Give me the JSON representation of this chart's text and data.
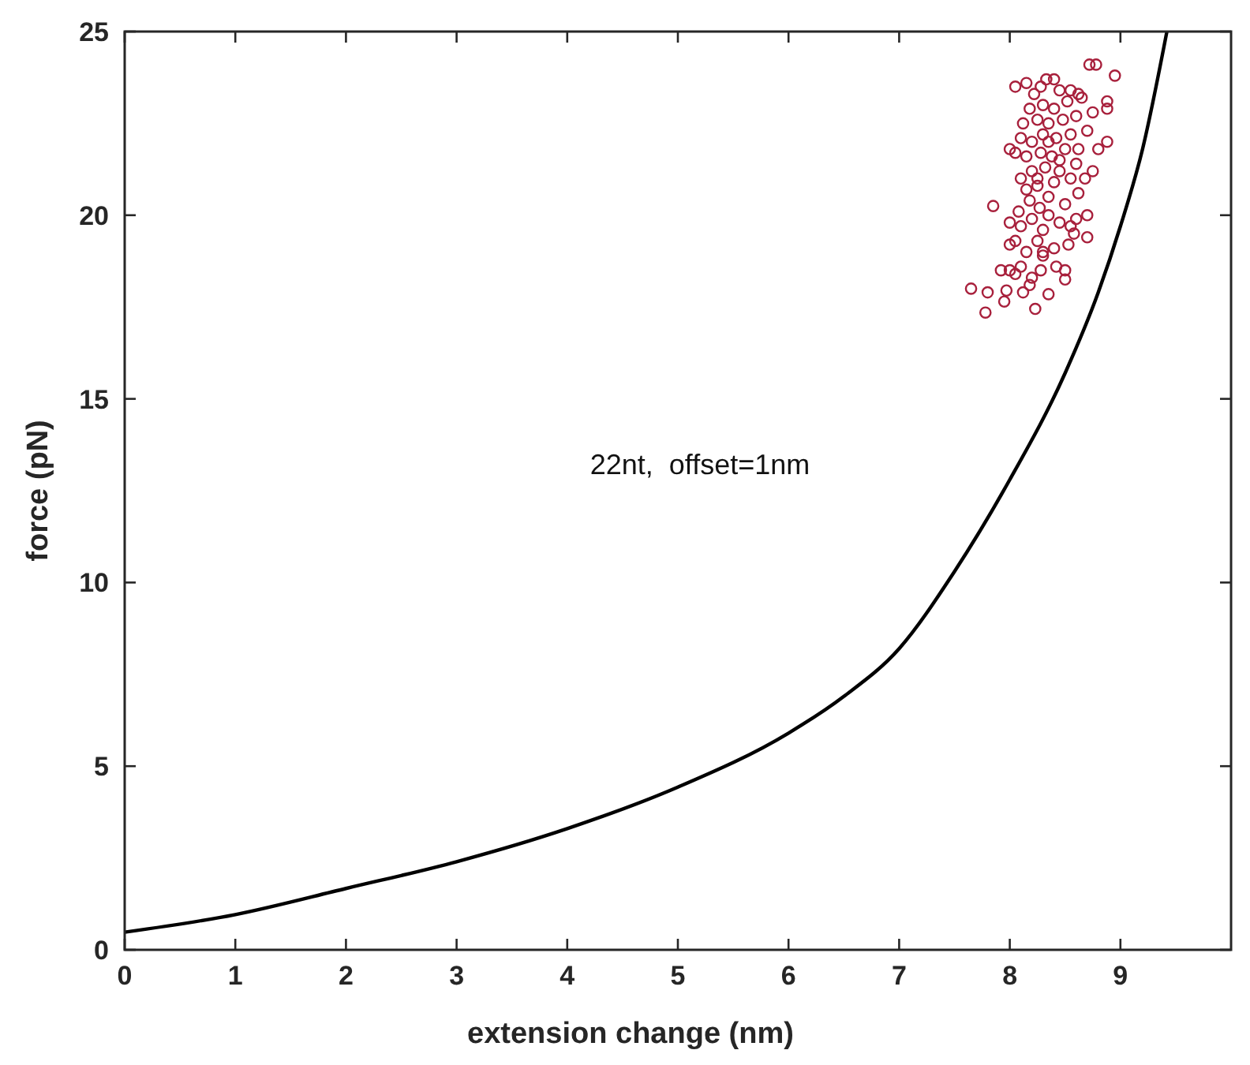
{
  "chart_data": {
    "type": "scatter",
    "xlabel": "extension change (nm)",
    "ylabel": "force (pN)",
    "xlim": [
      0,
      10
    ],
    "ylim": [
      0,
      25
    ],
    "xticks": [
      0,
      1,
      2,
      3,
      4,
      5,
      6,
      7,
      8,
      9
    ],
    "yticks": [
      0,
      5,
      10,
      15,
      20,
      25
    ],
    "grid": false,
    "annotations": [
      "22nt,  offset=1nm"
    ],
    "series": [
      {
        "type": "line",
        "color": "#000000",
        "line_style": "solid",
        "x": [
          0,
          1,
          2,
          3,
          4,
          5,
          6,
          6.5,
          7,
          7.5,
          8,
          8.5,
          8.8,
          9,
          9.2,
          9.42
        ],
        "values": [
          0.48,
          0.96,
          1.67,
          2.4,
          3.3,
          4.43,
          5.9,
          6.9,
          8.2,
          10.3,
          12.8,
          15.7,
          17.9,
          19.7,
          21.8,
          25
        ]
      },
      {
        "marker": "circle",
        "color": "#a8203c",
        "x": [
          7.65,
          7.78,
          7.8,
          7.95,
          7.97,
          8.12,
          8.23,
          8.35,
          8.5,
          7.85,
          8.0,
          8.05,
          7.92,
          8.1,
          8.2,
          8.28,
          8.42,
          8.5,
          8.3,
          8.0,
          8.05,
          8.15,
          8.25,
          8.4,
          8.53,
          8.58,
          8.55,
          8.1,
          8.2,
          8.3,
          8.45,
          8.7,
          8.0,
          8.08,
          8.18,
          8.27,
          8.35,
          8.5,
          8.62,
          8.15,
          8.25,
          8.4,
          8.55,
          8.68,
          8.1,
          8.2,
          8.32,
          8.45,
          8.6,
          8.75,
          8.05,
          8.15,
          8.28,
          8.38,
          8.5,
          8.62,
          8.8,
          8.88,
          8.1,
          8.2,
          8.3,
          8.42,
          8.55,
          8.7,
          8.12,
          8.25,
          8.35,
          8.48,
          8.6,
          8.75,
          8.88,
          8.18,
          8.3,
          8.4,
          8.52,
          8.65,
          8.88,
          8.05,
          8.15,
          8.28,
          8.33,
          8.4,
          8.55,
          8.62,
          8.72,
          8.78,
          8.95,
          8.22,
          8.45,
          8.35,
          8.45,
          8.25,
          8.35,
          8.0,
          8.3,
          8.6,
          8.7,
          8.18
        ],
        "values": [
          18.0,
          17.35,
          17.9,
          17.65,
          17.95,
          17.9,
          17.45,
          17.85,
          18.25,
          20.25,
          18.5,
          18.4,
          18.5,
          18.6,
          18.3,
          18.5,
          18.6,
          18.5,
          18.9,
          19.2,
          19.3,
          19.0,
          19.3,
          19.1,
          19.2,
          19.5,
          19.7,
          19.7,
          19.9,
          19.6,
          19.8,
          20.0,
          19.8,
          20.1,
          20.4,
          20.2,
          20.5,
          20.3,
          20.6,
          20.7,
          20.8,
          20.9,
          21.0,
          21.0,
          21.0,
          21.2,
          21.3,
          21.2,
          21.4,
          21.2,
          21.7,
          21.6,
          21.7,
          21.6,
          21.8,
          21.8,
          21.8,
          22.0,
          22.1,
          22.0,
          22.2,
          22.1,
          22.2,
          22.3,
          22.5,
          22.6,
          22.5,
          22.6,
          22.7,
          22.8,
          22.9,
          22.9,
          23.0,
          22.9,
          23.1,
          23.2,
          23.1,
          23.5,
          23.6,
          23.5,
          23.7,
          23.7,
          23.4,
          23.3,
          24.1,
          24.1,
          23.8,
          23.3,
          23.4,
          22.0,
          21.5,
          21.0,
          20.0,
          21.8,
          19.0,
          19.9,
          19.4,
          18.1
        ]
      }
    ]
  }
}
